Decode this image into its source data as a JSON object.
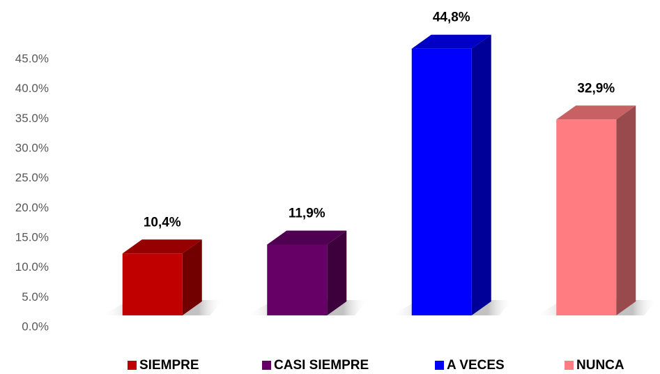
{
  "chart_data": {
    "type": "bar3d",
    "categories": [
      "SIEMPRE",
      "CASI SIEMPRE",
      "A VECES",
      "NUNCA"
    ],
    "values": [
      10.4,
      11.9,
      44.8,
      32.9
    ],
    "value_labels": [
      "10,4%",
      "11,9%",
      "44,8%",
      "32,9%"
    ],
    "colors": [
      "#c00000",
      "#660066",
      "#0000ff",
      "#ff7c80"
    ],
    "ylim": [
      0,
      45
    ],
    "yticks": [
      {
        "value": 0,
        "label": "0.0%"
      },
      {
        "value": 5,
        "label": "5.0%"
      },
      {
        "value": 10,
        "label": "10.0%"
      },
      {
        "value": 15,
        "label": "15.0%"
      },
      {
        "value": 20,
        "label": "20.0%"
      },
      {
        "value": 25,
        "label": "25.0%"
      },
      {
        "value": 30,
        "label": "30.0%"
      },
      {
        "value": 35,
        "label": "35.0%"
      },
      {
        "value": 40,
        "label": "40.0%"
      },
      {
        "value": 45,
        "label": "45.0%"
      }
    ],
    "grid": false,
    "legend": "bottom"
  }
}
